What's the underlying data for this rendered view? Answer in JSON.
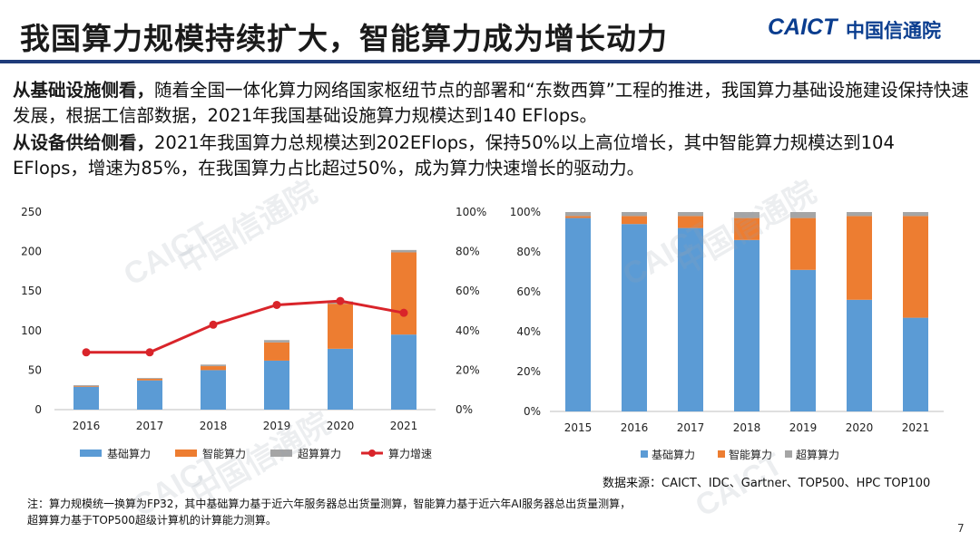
{
  "header": {
    "title": "我国算力规模持续扩大，智能算力成为增长动力",
    "logo_text": "CAICT",
    "logo_cn": "中国信通院"
  },
  "para1": {
    "lead": "从基础设施侧看，",
    "text": "随着全国一体化算力网络国家枢纽节点的部署和“东数西算”工程的推进，我国算力基础设施建设保持快速发展，根据工信部数据，2021年我国基础设施算力规模达到140 EFlops。"
  },
  "para2": {
    "lead": "从设备供给侧看，",
    "text": "2021年我国算力总规模达到202EFlops，保持50%以上高位增长，其中智能算力规模达到104 EFlops，增速为85%，在我国算力占比超过50%，成为算力快速增长的驱动力。"
  },
  "watermark": {
    "text_en": "CAICT",
    "text_cn": "中国信通院"
  },
  "colors": {
    "basic": "#5b9bd5",
    "smart": "#ed7d31",
    "super": "#a5a5a5",
    "growth": "#d9242a"
  },
  "chart_data": [
    {
      "type": "bar",
      "stacked": true,
      "categories": [
        "2016",
        "2017",
        "2018",
        "2019",
        "2020",
        "2021"
      ],
      "series": [
        {
          "name": "基础算力",
          "values": [
            29,
            37,
            50,
            62,
            77,
            95
          ]
        },
        {
          "name": "智能算力",
          "values": [
            1,
            2,
            5,
            23,
            57,
            104
          ]
        },
        {
          "name": "超算算力",
          "values": [
            1,
            1,
            2,
            3,
            3,
            3
          ]
        }
      ],
      "line_series": {
        "name": "算力增速",
        "values": [
          29,
          29,
          43,
          53,
          55,
          49
        ],
        "axis": "right"
      },
      "left_ticks": [
        "0",
        "50",
        "100",
        "150",
        "200",
        "250"
      ],
      "right_ticks": [
        "0%",
        "20%",
        "40%",
        "60%",
        "80%",
        "100%"
      ],
      "ylim": [
        0,
        250
      ],
      "y2lim": [
        0,
        100
      ],
      "legend_position": "bottom"
    },
    {
      "type": "bar",
      "stacked": true,
      "percent": true,
      "categories": [
        "2015",
        "2016",
        "2017",
        "2018",
        "2019",
        "2020",
        "2021"
      ],
      "series": [
        {
          "name": "基础算力",
          "values": [
            97,
            94,
            92,
            86,
            71,
            56,
            47
          ]
        },
        {
          "name": "智能算力",
          "values": [
            1,
            4,
            6,
            11,
            26,
            42,
            51
          ]
        },
        {
          "name": "超算算力",
          "values": [
            2,
            2,
            2,
            3,
            3,
            2,
            2
          ]
        }
      ],
      "left_ticks": [
        "0%",
        "20%",
        "40%",
        "60%",
        "80%",
        "100%"
      ],
      "ylim": [
        0,
        100
      ],
      "legend_position": "bottom"
    }
  ],
  "footer": {
    "source": "数据来源：CAICT、IDC、Gartner、TOP500、HPC TOP100",
    "note_line1": "注：算力规模统一换算为FP32，其中基础算力基于近六年服务器总出货量测算，智能算力基于近六年AI服务器总出货量测算，",
    "note_line2": "超算算力基于TOP500超级计算机的计算能力测算。",
    "page_number": "7"
  }
}
